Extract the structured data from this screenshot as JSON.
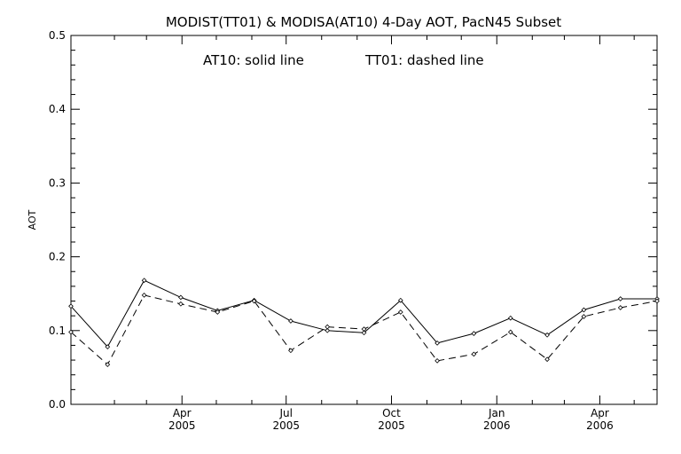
{
  "chart_data": {
    "type": "line",
    "title": "MODIST(TT01) & MODISA(AT10) 4-Day AOT, PacN45 Subset",
    "annotation_at10": "AT10: solid line",
    "annotation_tt01": "TT01: dashed line",
    "ylabel": "AOT",
    "xlabel": "",
    "ylim": [
      0.0,
      0.5
    ],
    "yticks": [
      "0.0",
      "0.1",
      "0.2",
      "0.3",
      "0.4",
      "0.5"
    ],
    "xticks": [
      {
        "month": "Apr",
        "year": "2005"
      },
      {
        "month": "Jul",
        "year": "2005"
      },
      {
        "month": "Oct",
        "year": "2005"
      },
      {
        "month": "Jan",
        "year": "2006"
      },
      {
        "month": "Apr",
        "year": "2006"
      }
    ],
    "grid": false,
    "series": [
      {
        "name": "AT10",
        "style": "solid",
        "x": [
          "2004-12-25",
          "2005-01-26",
          "2005-02-27",
          "2005-03-31",
          "2005-05-02",
          "2005-06-03",
          "2005-07-05",
          "2005-08-06",
          "2005-09-07",
          "2005-10-09",
          "2005-11-10",
          "2005-12-12",
          "2006-01-13",
          "2006-02-14",
          "2006-03-18",
          "2006-04-19",
          "2006-05-21"
        ],
        "y": [
          0.133,
          0.078,
          0.168,
          0.145,
          0.127,
          0.141,
          0.113,
          0.1,
          0.097,
          0.141,
          0.083,
          0.096,
          0.117,
          0.094,
          0.128,
          0.143,
          0.143
        ]
      },
      {
        "name": "TT01",
        "style": "dashed",
        "x": [
          "2004-12-25",
          "2005-01-26",
          "2005-02-27",
          "2005-03-31",
          "2005-05-02",
          "2005-06-03",
          "2005-07-05",
          "2005-08-06",
          "2005-09-07",
          "2005-10-09",
          "2005-11-10",
          "2005-12-12",
          "2006-01-13",
          "2006-02-14",
          "2006-03-18",
          "2006-04-19",
          "2006-05-21"
        ],
        "y": [
          0.098,
          0.054,
          0.148,
          0.136,
          0.125,
          0.14,
          0.073,
          0.105,
          0.102,
          0.125,
          0.059,
          0.068,
          0.098,
          0.061,
          0.119,
          0.131,
          0.14
        ]
      }
    ]
  }
}
